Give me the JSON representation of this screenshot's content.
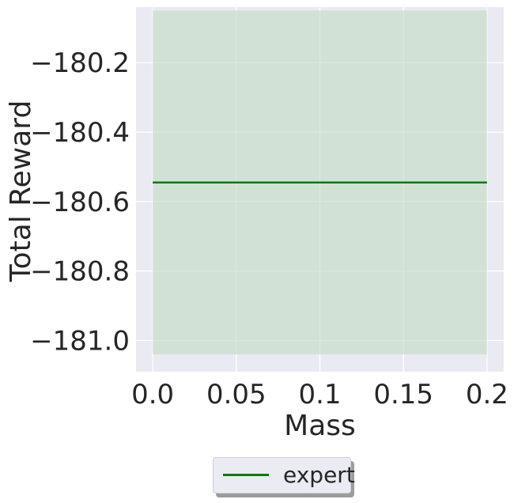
{
  "chart_data": {
    "type": "line",
    "title": "",
    "xlabel": "Mass",
    "ylabel": "Total Reward",
    "xlim": [
      -0.01,
      0.21
    ],
    "ylim": [
      -181.09,
      -180.04
    ],
    "xticks": [
      0.0,
      0.05,
      0.1,
      0.15,
      0.2
    ],
    "xtick_labels": [
      "0.0",
      "0.05",
      "0.1",
      "0.15",
      "0.2"
    ],
    "yticks": [
      -180.2,
      -180.4,
      -180.6,
      -180.8,
      -181.0
    ],
    "ytick_labels": [
      "−180.2",
      "−180.4",
      "−180.6",
      "−180.8",
      "−181.0"
    ],
    "grid": true,
    "legend_position": "bottom-center",
    "series": [
      {
        "name": "expert",
        "color": "#0e7a0e",
        "band_color": "#c5dcc5",
        "x": [
          0.0,
          0.05,
          0.1,
          0.15,
          0.2
        ],
        "y": [
          -180.545,
          -180.545,
          -180.545,
          -180.545,
          -180.545
        ],
        "y_upper": [
          -180.05,
          -180.05,
          -180.05,
          -180.05,
          -180.05
        ],
        "y_lower": [
          -181.04,
          -181.04,
          -181.04,
          -181.04,
          -181.04
        ]
      }
    ]
  }
}
